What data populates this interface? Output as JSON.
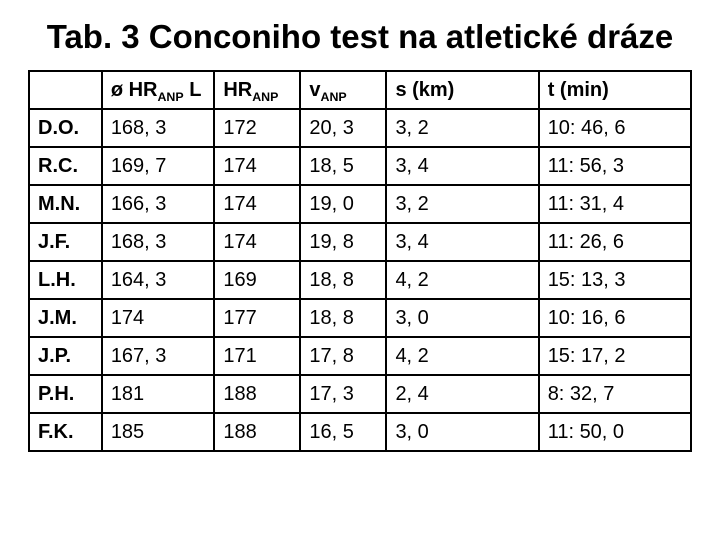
{
  "title": "Tab. 3 Conconiho test na atletické dráze",
  "table": {
    "type": "table",
    "background_color": "#ffffff",
    "border_color": "#000000",
    "header_fontsize": 20,
    "cell_fontsize": 20,
    "row_label_header": "",
    "columns": [
      {
        "label_html": "ø HR<sub>ANP</sub> L",
        "plain": "ø HRANP L"
      },
      {
        "label_html": "HR<sub>ANP</sub>",
        "plain": "HRANP"
      },
      {
        "label_html": "v<sub>ANP</sub>",
        "plain": "vANP"
      },
      {
        "label_html": "s (km)",
        "plain": "s (km)"
      },
      {
        "label_html": "t (min)",
        "plain": "t (min)"
      }
    ],
    "rows": [
      {
        "label": "D.O.",
        "cells": [
          "168, 3",
          "172",
          "20, 3",
          "3, 2",
          "10: 46, 6"
        ]
      },
      {
        "label": "R.C.",
        "cells": [
          "169, 7",
          "174",
          "18, 5",
          "3, 4",
          "11: 56, 3"
        ]
      },
      {
        "label": "M.N.",
        "cells": [
          "166, 3",
          "174",
          "19, 0",
          "3, 2",
          "11: 31, 4"
        ]
      },
      {
        "label": "J.F.",
        "cells": [
          "168, 3",
          "174",
          "19, 8",
          "3, 4",
          "11: 26, 6"
        ]
      },
      {
        "label": "L.H.",
        "cells": [
          "164, 3",
          "169",
          "18, 8",
          "4, 2",
          "15: 13, 3"
        ]
      },
      {
        "label": "J.M.",
        "cells": [
          "174",
          "177",
          "18, 8",
          "3, 0",
          "10: 16, 6"
        ]
      },
      {
        "label": "J.P.",
        "cells": [
          "167, 3",
          "171",
          "17, 8",
          "4, 2",
          "15: 17, 2"
        ]
      },
      {
        "label": "P.H.",
        "cells": [
          "181",
          "188",
          "17, 3",
          "2, 4",
          "8: 32, 7"
        ]
      },
      {
        "label": "F.K.",
        "cells": [
          "185",
          "188",
          "16, 5",
          "3, 0",
          "11: 50, 0"
        ]
      }
    ],
    "col_widths_pct": [
      11,
      17,
      13,
      13,
      23,
      23
    ]
  }
}
